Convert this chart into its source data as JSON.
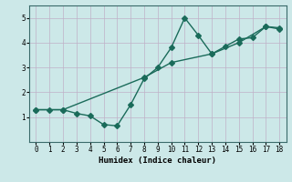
{
  "line1_x": [
    0,
    1,
    2,
    3,
    4,
    5,
    6,
    7,
    8,
    9,
    10,
    11,
    12,
    13,
    14,
    15,
    16,
    17,
    18
  ],
  "line1_y": [
    1.3,
    1.3,
    1.3,
    1.15,
    1.05,
    0.7,
    0.65,
    1.5,
    2.55,
    3.0,
    3.8,
    5.0,
    4.3,
    3.55,
    3.85,
    4.15,
    4.2,
    4.65,
    4.6
  ],
  "line2_x": [
    0,
    2,
    8,
    10,
    13,
    15,
    17,
    18
  ],
  "line2_y": [
    1.3,
    1.3,
    2.6,
    3.2,
    3.55,
    4.0,
    4.65,
    4.55
  ],
  "line_color": "#1a6b5a",
  "bg_color": "#cce8e8",
  "grid_color": "#c0b0c8",
  "xlabel": "Humidex (Indice chaleur)",
  "xlim": [
    -0.5,
    18.5
  ],
  "ylim": [
    0,
    5.5
  ],
  "xticks": [
    0,
    1,
    2,
    3,
    4,
    5,
    6,
    7,
    8,
    9,
    10,
    11,
    12,
    13,
    14,
    15,
    16,
    17,
    18
  ],
  "yticks": [
    1,
    2,
    3,
    4,
    5
  ],
  "marker": "D",
  "markersize": 3,
  "linewidth": 1.0
}
